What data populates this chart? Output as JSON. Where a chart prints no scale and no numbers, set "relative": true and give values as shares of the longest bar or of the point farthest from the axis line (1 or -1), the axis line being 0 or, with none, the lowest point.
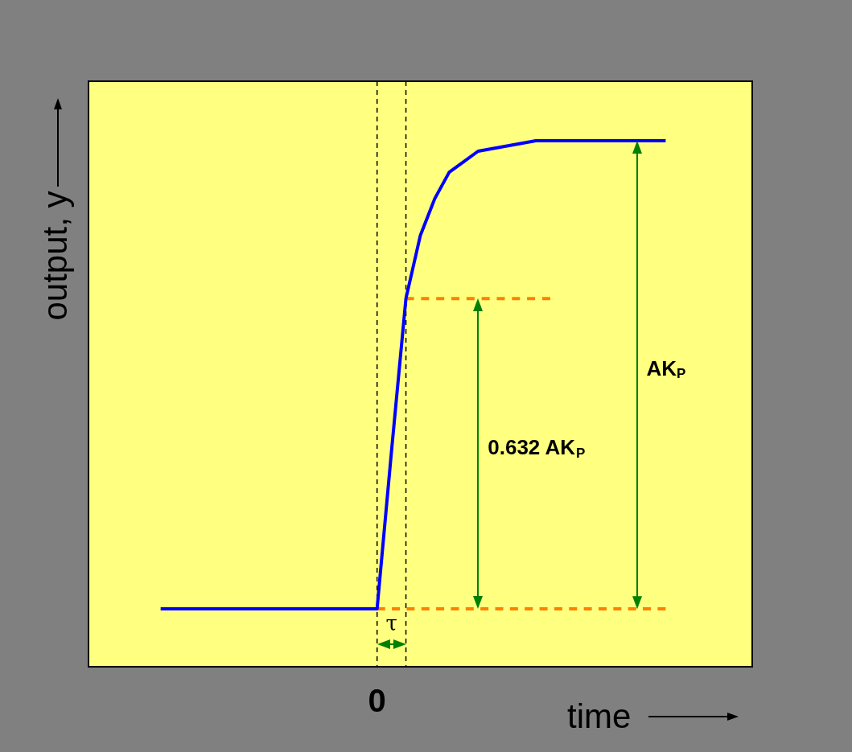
{
  "chart_data": {
    "type": "line",
    "relative": true,
    "xlabel": "time",
    "ylabel": "output, y",
    "marker": "none",
    "categories": [
      null,
      null,
      null,
      null,
      null,
      null,
      null,
      null,
      null,
      null,
      null,
      null,
      null,
      null,
      null,
      null,
      null,
      null,
      null,
      null,
      null,
      null,
      null,
      null,
      null,
      null,
      null,
      null,
      null,
      null,
      null,
      null,
      null,
      null,
      null,
      null,
      null,
      null,
      null,
      null,
      null,
      null,
      null,
      null,
      null,
      null,
      null
    ],
    "series": [
      {
        "color": "#0000ff",
        "line_style": "solid",
        "values": [
          null,
          null,
          null,
          null,
          null,
          0.11,
          0.11,
          0.11,
          0.11,
          0.11,
          0.11,
          0.11,
          0.11,
          0.11,
          0.11,
          0.11,
          0.11,
          0.11,
          0.11,
          0.11,
          0.11,
          0.41,
          0.7,
          0.82,
          0.89,
          0.94,
          0.96,
          0.98,
          0.985,
          0.99,
          0.995,
          1,
          1,
          1,
          1,
          1,
          1,
          1,
          1,
          1,
          1,
          null,
          null,
          null,
          null,
          null,
          null
        ]
      },
      {
        "color": "#ff8000",
        "line_style": "dashed",
        "values": [
          null,
          null,
          null,
          null,
          null,
          null,
          null,
          null,
          null,
          null,
          null,
          null,
          null,
          null,
          null,
          null,
          null,
          null,
          null,
          null,
          0.11,
          0.11,
          0.11,
          0.11,
          0.11,
          0.11,
          0.11,
          0.11,
          0.11,
          0.11,
          0.11,
          0.11,
          0.11,
          0.11,
          0.11,
          0.11,
          0.11,
          0.11,
          0.11,
          0.11,
          0.11,
          null,
          null,
          null,
          null,
          null,
          null
        ]
      },
      {
        "color": "#ff8000",
        "line_style": "dashed",
        "values": [
          null,
          null,
          null,
          null,
          null,
          null,
          null,
          null,
          null,
          null,
          null,
          null,
          null,
          null,
          null,
          null,
          null,
          null,
          null,
          null,
          null,
          null,
          0.7,
          0.7,
          0.7,
          0.7,
          0.7,
          0.7,
          0.7,
          0.7,
          0.7,
          0.7,
          0.7,
          null,
          null,
          null,
          null,
          null,
          null,
          null,
          null,
          null,
          null,
          null,
          null,
          null,
          null
        ]
      }
    ],
    "annotations": [
      "0",
      "τ",
      "0.632 AK$_{P}$",
      "AK$_{P}$"
    ]
  }
}
